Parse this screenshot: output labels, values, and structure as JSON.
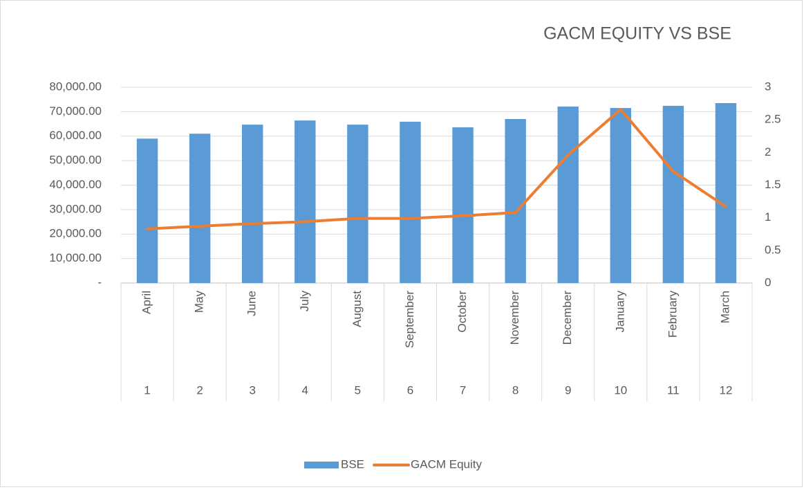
{
  "chart_data": {
    "type": "bar_line",
    "title": "GACM EQUITY VS BSE",
    "categories": [
      "April",
      "May",
      "June",
      "July",
      "August",
      "September",
      "October",
      "November",
      "December",
      "January",
      "February",
      "March"
    ],
    "outer_categories": [
      "1",
      "2",
      "3",
      "4",
      "5",
      "6",
      "7",
      "8",
      "9",
      "10",
      "11",
      "12"
    ],
    "series": [
      {
        "name": "BSE",
        "type": "bar",
        "color": "#5b9bd5",
        "axis": "y",
        "values": [
          59000,
          61000,
          64700,
          66400,
          64700,
          65900,
          63600,
          67000,
          72100,
          71500,
          72400,
          73500
        ]
      },
      {
        "name": "GACM Equity",
        "type": "line",
        "color": "#ed7d31",
        "axis": "y2",
        "values": [
          0.83,
          0.87,
          0.91,
          0.94,
          0.99,
          0.99,
          1.03,
          1.08,
          1.96,
          2.66,
          1.71,
          1.17
        ]
      }
    ],
    "ylim": [
      0,
      80000
    ],
    "yticks": [
      {
        "value": 0,
        "label": "-"
      },
      {
        "value": 10000,
        "label": "10,000.00"
      },
      {
        "value": 20000,
        "label": "20,000.00"
      },
      {
        "value": 30000,
        "label": "30,000.00"
      },
      {
        "value": 40000,
        "label": "40,000.00"
      },
      {
        "value": 50000,
        "label": "50,000.00"
      },
      {
        "value": 60000,
        "label": "60,000.00"
      },
      {
        "value": 70000,
        "label": "70,000.00"
      },
      {
        "value": 80000,
        "label": "80,000.00"
      }
    ],
    "y2lim": [
      0,
      3
    ],
    "y2ticks": [
      0,
      0.5,
      1,
      1.5,
      2,
      2.5,
      3
    ],
    "grid": true,
    "legend": "bottom"
  }
}
